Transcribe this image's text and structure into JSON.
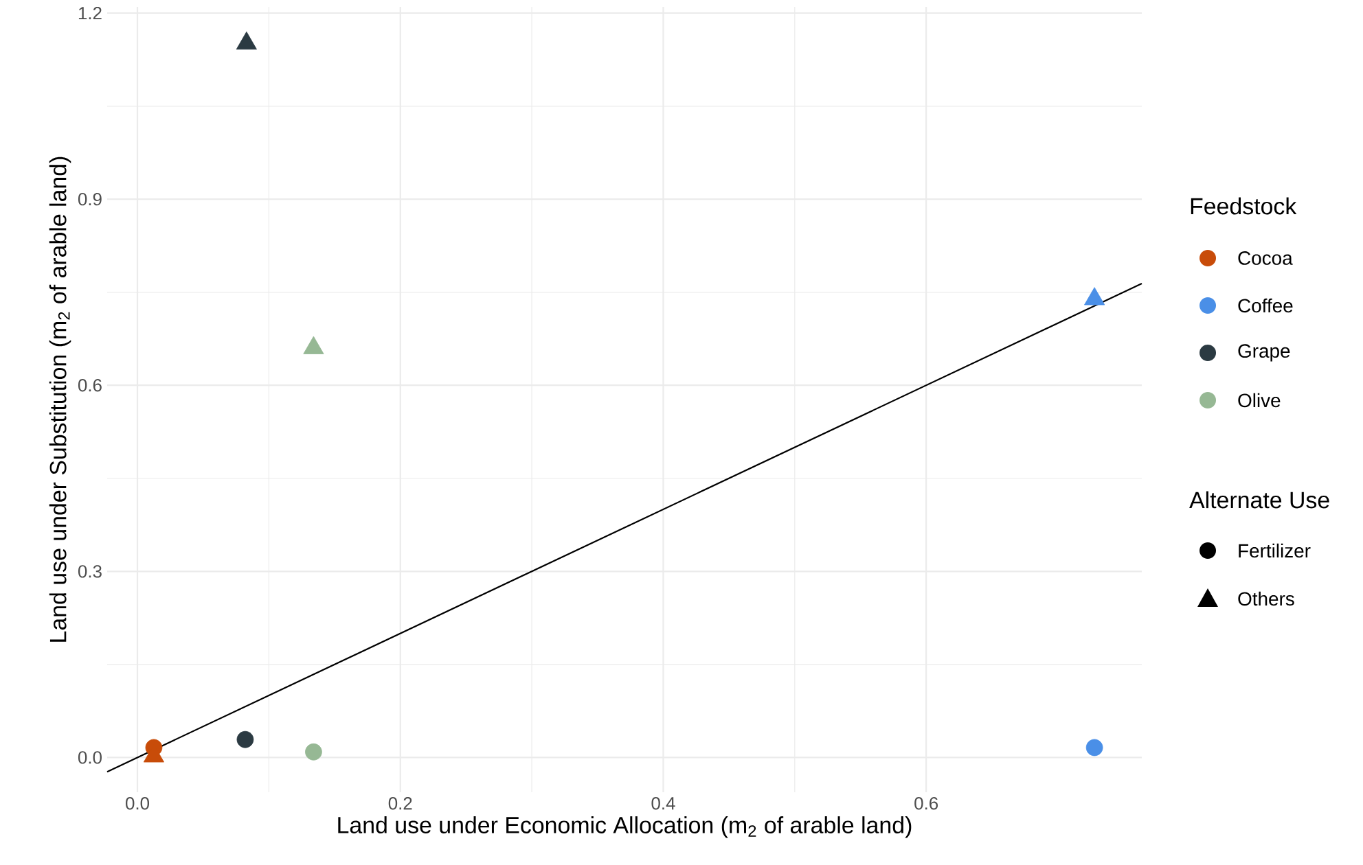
{
  "chart_data": {
    "type": "scatter",
    "xlabel": "Land use under Economic Allocation (m$_{2}$ of arable land)",
    "ylabel": "Land use under Substitution (m$_{2}$ of arable land)",
    "xlim": [
      -0.023,
      0.764
    ],
    "ylim": [
      -0.056,
      1.21
    ],
    "xticks": [
      {
        "value": 0,
        "label": "0.0"
      },
      0.2,
      0.4,
      0.6
    ],
    "yticks": [
      {
        "value": 0,
        "label": "0.0"
      },
      0.3,
      0.6,
      0.9,
      1.2
    ],
    "grid": true,
    "legend": "right",
    "legend_title": "Feedstock",
    "annotations": [
      "Alternate Use",
      "Fertilizer",
      "Others"
    ],
    "series": [
      {
        "name": "Cocoa",
        "color": "#c84c09",
        "marker": "circle",
        "x": [
          0.0125
        ],
        "values": [
          0.016
        ]
      },
      {
        "name": "Coffee",
        "color": "#4a8fe7",
        "marker": "circle",
        "x": [
          0.728
        ],
        "values": [
          0.016
        ]
      },
      {
        "name": "Grape",
        "color": "#2b3a42",
        "marker": "circle",
        "x": [
          0.082
        ],
        "values": [
          0.029
        ]
      },
      {
        "name": "Olive",
        "color": "#96b894",
        "marker": "circle",
        "x": [
          0.134
        ],
        "values": [
          0.009
        ]
      },
      {
        "color": "#c84c09",
        "marker": "triangle",
        "x": [
          0.0125
        ],
        "values": [
          0.002
        ]
      },
      {
        "color": "#4a8fe7",
        "marker": "triangle",
        "x": [
          0.728
        ],
        "values": [
          0.739
        ]
      },
      {
        "color": "#2b3a42",
        "marker": "triangle",
        "x": [
          0.083
        ],
        "values": [
          1.151
        ]
      },
      {
        "color": "#96b894",
        "marker": "triangle",
        "x": [
          0.134
        ],
        "values": [
          0.66
        ]
      },
      {
        "type": "line",
        "color": "#000000",
        "x": [
          -0.023,
          0.764
        ],
        "values": [
          -0.023,
          0.764
        ]
      }
    ]
  }
}
